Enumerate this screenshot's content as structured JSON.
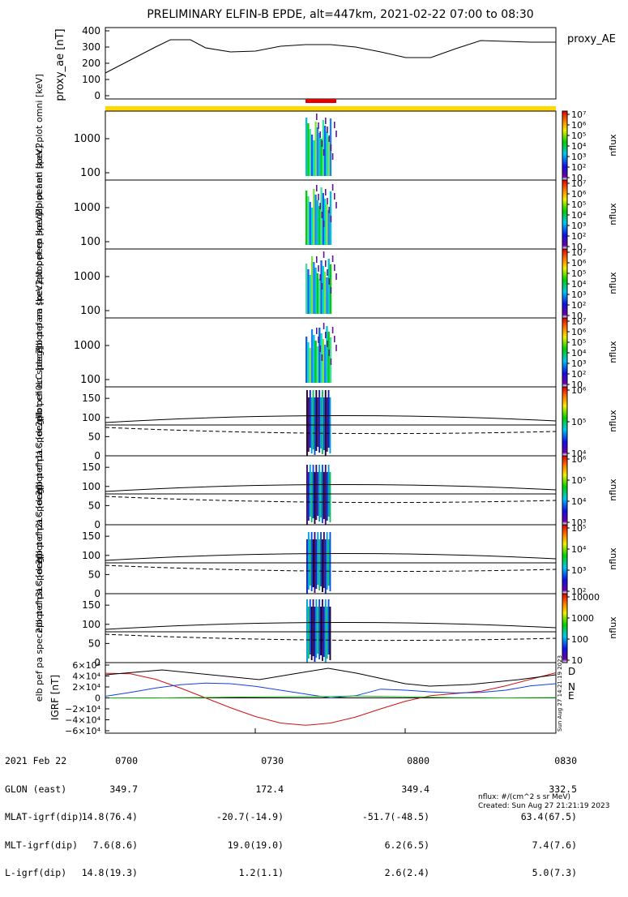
{
  "title": "PRELIMINARY ELFIN-B EPDE, alt=447km, 2021-02-22 07:00 to 08:30",
  "created": "Created: Sun Aug 27 21:21:19 2023",
  "nflux_units": "nflux: #/(cm^2 s sr MeV)",
  "side_stamp": "Sun Aug 27 14:21:19 2023",
  "legend_colors": {
    "D": "#d01010",
    "N": "#1040e0",
    "E": "#10c010"
  },
  "footer": {
    "row_labels": [
      "2021 Feb 22",
      "GLON (east)",
      "MLAT-igrf(dip)",
      "MLT-igrf(dip)",
      "L-igrf(dip)"
    ],
    "columns": [
      {
        "time": "0700",
        "values": [
          "349.7",
          "14.8(76.4)",
          "7.6(8.6)",
          "14.8(19.3)"
        ]
      },
      {
        "time": "0730",
        "values": [
          "172.4",
          "-20.7(-14.9)",
          "19.0(19.0)",
          "1.2(1.1)"
        ]
      },
      {
        "time": "0800",
        "values": [
          "349.4",
          "-51.7(-48.5)",
          "6.2(6.5)",
          "2.6(2.4)"
        ]
      },
      {
        "time": "0830",
        "values": [
          "332.5",
          "63.4(67.5)",
          "7.4(7.6)",
          "5.0(7.3)"
        ]
      }
    ]
  },
  "chart_data": [
    {
      "type": "line",
      "ylabel": "proxy_ae [nT]",
      "legend": "proxy_AE",
      "yticks": [
        0,
        100,
        200,
        300,
        400
      ],
      "ylim": [
        -20,
        420
      ],
      "xlim": [
        0,
        90
      ],
      "x": [
        0,
        5,
        10,
        13,
        17,
        20,
        25,
        30,
        35,
        40,
        45,
        50,
        55,
        60,
        65,
        70,
        75,
        80,
        85,
        90
      ],
      "values": [
        140,
        220,
        300,
        345,
        345,
        295,
        270,
        275,
        305,
        315,
        315,
        300,
        270,
        235,
        235,
        290,
        340,
        335,
        330,
        330
      ]
    },
    {
      "type": "heatmap",
      "ylabel": "elb pef en spec2plot omni [keV]",
      "yscale": "log",
      "yticks": [
        100,
        1000
      ],
      "colorbar_label": "nflux",
      "colorbar_ticks": [
        "10",
        "10²",
        "10³",
        "10⁴",
        "10⁵",
        "10⁶",
        "10⁷"
      ]
    },
    {
      "type": "heatmap",
      "ylabel": "elb pef en spec2plot anti [keV]",
      "yscale": "log",
      "yticks": [
        100,
        1000
      ],
      "colorbar_label": "nflux",
      "colorbar_ticks": [
        "10",
        "10²",
        "10³",
        "10⁴",
        "10⁵",
        "10⁶",
        "10⁷"
      ]
    },
    {
      "type": "heatmap",
      "ylabel": "elb pef en spec2plot perp [keV]",
      "yscale": "log",
      "yticks": [
        100,
        1000
      ],
      "colorbar_label": "nflux",
      "colorbar_ticks": [
        "10",
        "10²",
        "10³",
        "10⁴",
        "10⁵",
        "10⁶",
        "10⁷"
      ]
    },
    {
      "type": "heatmap",
      "ylabel": "elb pef en spec2plot para [keV]",
      "yscale": "log",
      "yticks": [
        100,
        1000
      ],
      "colorbar_label": "nflux",
      "colorbar_ticks": [
        "10",
        "10²",
        "10³",
        "10⁴",
        "10⁵",
        "10⁶",
        "10⁷"
      ]
    },
    {
      "type": "heatmap",
      "ylabel": "elb pef pa spec2plot ch0LC [deg]",
      "yticks": [
        0,
        50,
        100,
        150
      ],
      "ylim": [
        0,
        180
      ],
      "colorbar_label": "nflux",
      "colorbar_ticks": [
        "10⁴",
        "10⁵",
        "10⁶"
      ]
    },
    {
      "type": "heatmap",
      "ylabel": "elb pef pa spec2plot ch1LC [deg]",
      "yticks": [
        0,
        50,
        100,
        150
      ],
      "ylim": [
        0,
        180
      ],
      "colorbar_label": "nflux",
      "colorbar_ticks": [
        "10³",
        "10⁴",
        "10⁵",
        "10⁶"
      ]
    },
    {
      "type": "heatmap",
      "ylabel": "elb pef pa spec2plot ch2LC [deg]",
      "yticks": [
        0,
        50,
        100,
        150
      ],
      "ylim": [
        0,
        180
      ],
      "colorbar_label": "nflux",
      "colorbar_ticks": [
        "10²",
        "10³",
        "10⁴",
        "10⁵"
      ]
    },
    {
      "type": "heatmap",
      "ylabel": "elb pef pa spec2plot ch3LC [deg]",
      "yticks": [
        0,
        50,
        100,
        150
      ],
      "ylim": [
        0,
        180
      ],
      "colorbar_label": "nflux",
      "colorbar_ticks": [
        "10",
        "100",
        "1000",
        "10000"
      ]
    },
    {
      "type": "line",
      "ylabel": "IGRF [nT]",
      "yticks": [
        "6×10⁴",
        "4×10⁴",
        "2×10⁴",
        "0",
        "−2×10⁴",
        "−4×10⁴",
        "−6×10⁴"
      ],
      "ylim": [
        -60000,
        60000
      ],
      "xlim": [
        0,
        90
      ],
      "x": [
        0,
        5,
        10,
        15,
        20,
        25,
        30,
        35,
        40,
        45,
        50,
        55,
        60,
        65,
        70,
        75,
        80,
        85,
        90
      ],
      "series": [
        {
          "name": "D",
          "values": [
            45000,
            44000,
            34000,
            18000,
            0,
            -18000,
            -34000,
            -46000,
            -50000,
            -46000,
            -35000,
            -20000,
            -6000,
            4000,
            8000,
            12000,
            22000,
            34000,
            46000
          ]
        },
        {
          "name": "N",
          "values": [
            3000,
            10000,
            18000,
            24000,
            27000,
            26000,
            21000,
            14000,
            7000,
            0,
            4000,
            16000,
            14000,
            11000,
            9000,
            10000,
            14000,
            22000,
            26000
          ]
        },
        {
          "name": "E",
          "values": [
            0,
            -200,
            -100,
            300,
            800,
            1300,
            1700,
            2000,
            2300,
            2500,
            3500,
            2800,
            2000,
            1200,
            500,
            300,
            0,
            300,
            600
          ]
        }
      ]
    }
  ]
}
